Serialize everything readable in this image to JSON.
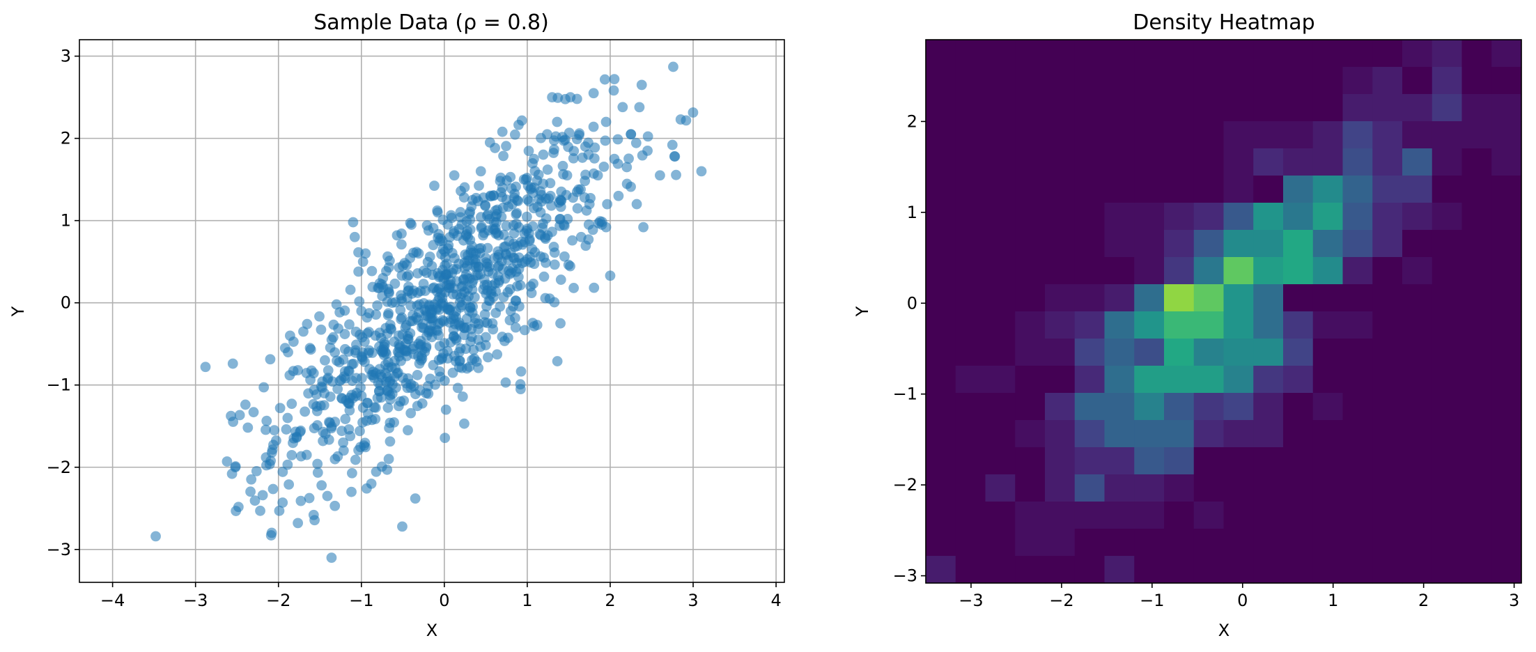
{
  "chart_data": [
    {
      "type": "scatter",
      "title": "Sample Data (ρ = 0.8)",
      "xlabel": "X",
      "ylabel": "Y",
      "xlim": [
        -4.4,
        4.1
      ],
      "ylim": [
        -3.4,
        3.2
      ],
      "xticks": [
        -4,
        -3,
        -2,
        -1,
        0,
        1,
        2,
        3,
        4
      ],
      "yticks": [
        -3,
        -2,
        -1,
        0,
        1,
        2,
        3
      ],
      "grid": true,
      "color": "#1f77b4",
      "alpha": 0.55,
      "n_points": 1000,
      "correlation": 0.8,
      "points": [
        [
          -3.48,
          -2.84
        ],
        [
          -2.88,
          -0.78
        ],
        [
          -2.55,
          -0.74
        ],
        [
          -2.62,
          -1.93
        ],
        [
          -2.56,
          -2.08
        ],
        [
          -2.52,
          -2.0
        ],
        [
          -2.3,
          -1.33
        ],
        [
          -2.22,
          -2.53
        ],
        [
          -2.19,
          -2.34
        ],
        [
          -2.15,
          -1.88
        ],
        [
          -2.05,
          -1.55
        ],
        [
          -1.99,
          -2.53
        ],
        [
          -1.98,
          -1.28
        ],
        [
          -1.95,
          -2.43
        ],
        [
          -1.92,
          -0.55
        ],
        [
          -1.86,
          -0.4
        ],
        [
          -1.82,
          -0.83
        ],
        [
          -1.78,
          -1.63
        ],
        [
          -1.73,
          -2.41
        ],
        [
          -1.7,
          -0.35
        ],
        [
          -1.66,
          -1.85
        ],
        [
          -1.62,
          -0.55
        ],
        [
          -1.57,
          -1.06
        ],
        [
          -1.53,
          -1.96
        ],
        [
          -1.48,
          -2.22
        ],
        [
          -1.44,
          -0.7
        ],
        [
          -1.41,
          -2.35
        ],
        [
          -1.38,
          -1.46
        ],
        [
          -1.36,
          -3.1
        ],
        [
          -1.32,
          -2.47
        ],
        [
          -1.3,
          -0.02
        ],
        [
          -1.26,
          -0.95
        ],
        [
          -1.22,
          -1.7
        ],
        [
          -1.2,
          -0.38
        ],
        [
          -1.16,
          -1.22
        ],
        [
          -1.12,
          -2.3
        ],
        [
          -1.1,
          0.98
        ],
        [
          -1.08,
          0.8
        ],
        [
          -1.02,
          -1.56
        ],
        [
          -1.0,
          -0.1
        ],
        [
          -0.98,
          0.5
        ],
        [
          -0.95,
          0.6
        ],
        [
          -0.92,
          -1.35
        ],
        [
          -0.88,
          -2.2
        ],
        [
          -0.86,
          -0.88
        ],
        [
          -0.83,
          -0.4
        ],
        [
          -0.8,
          0.18
        ],
        [
          -0.77,
          -1.0
        ],
        [
          -0.74,
          0.3
        ],
        [
          -0.7,
          -0.62
        ],
        [
          -0.67,
          -1.9
        ],
        [
          -0.63,
          0.0
        ],
        [
          -0.6,
          -0.9
        ],
        [
          -0.57,
          0.82
        ],
        [
          -0.53,
          -1.2
        ],
        [
          -0.5,
          0.45
        ],
        [
          -0.47,
          -0.3
        ],
        [
          -0.44,
          -1.55
        ],
        [
          -0.41,
          0.97
        ],
        [
          -0.38,
          -0.15
        ],
        [
          -0.35,
          -2.38
        ],
        [
          -0.31,
          0.6
        ],
        [
          -0.28,
          -0.7
        ],
        [
          -0.25,
          0.23
        ],
        [
          -0.22,
          -1.1
        ],
        [
          -0.19,
          0.88
        ],
        [
          -0.15,
          -0.35
        ],
        [
          -0.12,
          -0.02
        ],
        [
          -0.08,
          1.1
        ],
        [
          -0.05,
          -0.9
        ],
        [
          -0.02,
          0.4
        ],
        [
          0.02,
          -1.3
        ],
        [
          0.05,
          0.7
        ],
        [
          0.08,
          -0.2
        ],
        [
          0.12,
          1.55
        ],
        [
          0.15,
          0.1
        ],
        [
          0.18,
          -0.6
        ],
        [
          0.21,
          0.95
        ],
        [
          0.24,
          -1.47
        ],
        [
          0.28,
          0.3
        ],
        [
          0.31,
          -0.05
        ],
        [
          0.34,
          1.25
        ],
        [
          0.38,
          0.6
        ],
        [
          0.41,
          -0.45
        ],
        [
          0.44,
          1.6
        ],
        [
          0.48,
          0.85
        ],
        [
          0.52,
          0.15
        ],
        [
          0.55,
          1.95
        ],
        [
          0.58,
          -0.25
        ],
        [
          0.62,
          1.05
        ],
        [
          0.66,
          0.45
        ],
        [
          0.7,
          1.4
        ],
        [
          0.74,
          -0.97
        ],
        [
          0.78,
          0.75
        ],
        [
          0.82,
          1.2
        ],
        [
          0.86,
          -0.3
        ],
        [
          0.9,
          0.55
        ],
        [
          0.92,
          -1.05
        ],
        [
          0.96,
          1.5
        ],
        [
          1.0,
          0.9
        ],
        [
          1.04,
          0.2
        ],
        [
          1.08,
          1.75
        ],
        [
          1.12,
          -0.27
        ],
        [
          1.16,
          1.1
        ],
        [
          1.2,
          0.55
        ],
        [
          1.24,
          2.05
        ],
        [
          1.28,
          1.3
        ],
        [
          1.32,
          0.68
        ],
        [
          1.36,
          2.2
        ],
        [
          1.4,
          -0.25
        ],
        [
          1.44,
          0.95
        ],
        [
          1.48,
          1.55
        ],
        [
          1.52,
          2.5
        ],
        [
          1.56,
          0.18
        ],
        [
          1.6,
          1.35
        ],
        [
          1.65,
          0.8
        ],
        [
          1.7,
          1.9
        ],
        [
          1.75,
          1.2
        ],
        [
          1.8,
          2.55
        ],
        [
          1.85,
          1.55
        ],
        [
          1.9,
          0.95
        ],
        [
          1.95,
          2.2
        ],
        [
          2.0,
          0.33
        ],
        [
          2.05,
          1.75
        ],
        [
          2.1,
          1.3
        ],
        [
          2.15,
          2.38
        ],
        [
          2.2,
          1.65
        ],
        [
          2.25,
          2.05
        ],
        [
          2.32,
          1.2
        ],
        [
          2.38,
          2.65
        ],
        [
          2.45,
          1.85
        ],
        [
          2.6,
          1.55
        ],
        [
          2.75,
          1.92
        ],
        [
          2.78,
          1.78
        ],
        [
          2.76,
          2.87
        ],
        [
          2.85,
          2.23
        ],
        [
          3.1,
          1.6
        ],
        [
          1.3,
          2.5
        ],
        [
          0.7,
          2.08
        ],
        [
          1.95,
          0.92
        ],
        [
          2.4,
          0.92
        ],
        [
          1.6,
          2.48
        ],
        [
          2.05,
          2.72
        ],
        [
          2.25,
          2.05
        ]
      ]
    },
    {
      "type": "heatmap",
      "title": "Density Heatmap",
      "xlabel": "X",
      "ylabel": "Y",
      "xlim": [
        -3.5,
        3.08
      ],
      "ylim": [
        -3.08,
        2.9
      ],
      "xticks": [
        -3,
        -2,
        -1,
        0,
        1,
        2,
        3
      ],
      "yticks": [
        -3,
        -2,
        -1,
        0,
        1,
        2
      ],
      "bins": [
        20,
        20
      ],
      "colormap": "viridis",
      "cmax": 20,
      "counts_row_order": "top-to-bottom",
      "counts": [
        [
          0,
          0,
          0,
          0,
          0,
          0,
          0,
          0,
          0,
          0,
          0,
          0,
          0,
          0,
          0,
          0,
          1,
          2,
          0,
          1
        ],
        [
          0,
          0,
          0,
          0,
          0,
          0,
          0,
          0,
          0,
          0,
          0,
          0,
          0,
          0,
          1,
          2,
          0,
          3,
          0,
          0
        ],
        [
          0,
          0,
          0,
          0,
          0,
          0,
          0,
          0,
          0,
          0,
          0,
          0,
          0,
          0,
          2,
          2,
          2,
          4,
          1,
          1
        ],
        [
          0,
          0,
          0,
          0,
          0,
          0,
          0,
          0,
          0,
          0,
          1,
          1,
          1,
          2,
          5,
          3,
          1,
          1,
          1,
          1
        ],
        [
          0,
          0,
          0,
          0,
          0,
          0,
          0,
          0,
          0,
          0,
          1,
          3,
          2,
          2,
          6,
          3,
          7,
          1,
          0,
          1
        ],
        [
          0,
          0,
          0,
          0,
          0,
          0,
          0,
          0,
          0,
          0,
          1,
          0,
          9,
          12,
          8,
          4,
          4,
          0,
          0,
          0
        ],
        [
          0,
          0,
          0,
          0,
          0,
          0,
          1,
          1,
          2,
          3,
          7,
          13,
          10,
          14,
          7,
          3,
          2,
          1,
          0,
          0
        ],
        [
          0,
          0,
          0,
          0,
          0,
          0,
          1,
          1,
          3,
          7,
          12,
          12,
          15,
          9,
          6,
          3,
          0,
          0,
          0,
          0
        ],
        [
          0,
          0,
          0,
          0,
          0,
          0,
          0,
          1,
          4,
          10,
          17,
          14,
          15,
          12,
          2,
          0,
          1,
          0,
          0,
          0
        ],
        [
          0,
          0,
          0,
          0,
          1,
          1,
          2,
          9,
          18,
          17,
          13,
          9,
          0,
          0,
          0,
          0,
          0,
          0,
          0,
          0
        ],
        [
          0,
          0,
          0,
          1,
          2,
          3,
          9,
          13,
          16,
          16,
          13,
          9,
          4,
          1,
          1,
          0,
          0,
          0,
          0,
          0
        ],
        [
          0,
          0,
          0,
          1,
          1,
          5,
          8,
          6,
          15,
          11,
          12,
          12,
          5,
          0,
          0,
          0,
          0,
          0,
          0,
          0
        ],
        [
          0,
          1,
          1,
          0,
          0,
          3,
          9,
          14,
          14,
          14,
          11,
          4,
          3,
          0,
          0,
          0,
          0,
          0,
          0,
          0
        ],
        [
          0,
          0,
          0,
          0,
          3,
          8,
          8,
          11,
          7,
          4,
          5,
          2,
          0,
          1,
          0,
          0,
          0,
          0,
          0,
          0
        ],
        [
          0,
          0,
          0,
          1,
          2,
          5,
          8,
          8,
          8,
          3,
          2,
          2,
          0,
          0,
          0,
          0,
          0,
          0,
          0,
          0
        ],
        [
          0,
          0,
          0,
          0,
          2,
          3,
          3,
          7,
          6,
          0,
          0,
          0,
          0,
          0,
          0,
          0,
          0,
          0,
          0,
          0
        ],
        [
          0,
          0,
          2,
          0,
          2,
          6,
          2,
          2,
          1,
          0,
          0,
          0,
          0,
          0,
          0,
          0,
          0,
          0,
          0,
          0
        ],
        [
          0,
          0,
          0,
          1,
          1,
          1,
          1,
          1,
          0,
          1,
          0,
          0,
          0,
          0,
          0,
          0,
          0,
          0,
          0,
          0
        ],
        [
          0,
          0,
          0,
          1,
          1,
          0,
          0,
          0,
          0,
          0,
          0,
          0,
          0,
          0,
          0,
          0,
          0,
          0,
          0,
          0
        ],
        [
          2,
          0,
          0,
          0,
          0,
          0,
          2,
          0,
          0,
          0,
          0,
          0,
          0,
          0,
          0,
          0,
          0,
          0,
          0,
          0
        ]
      ]
    }
  ]
}
